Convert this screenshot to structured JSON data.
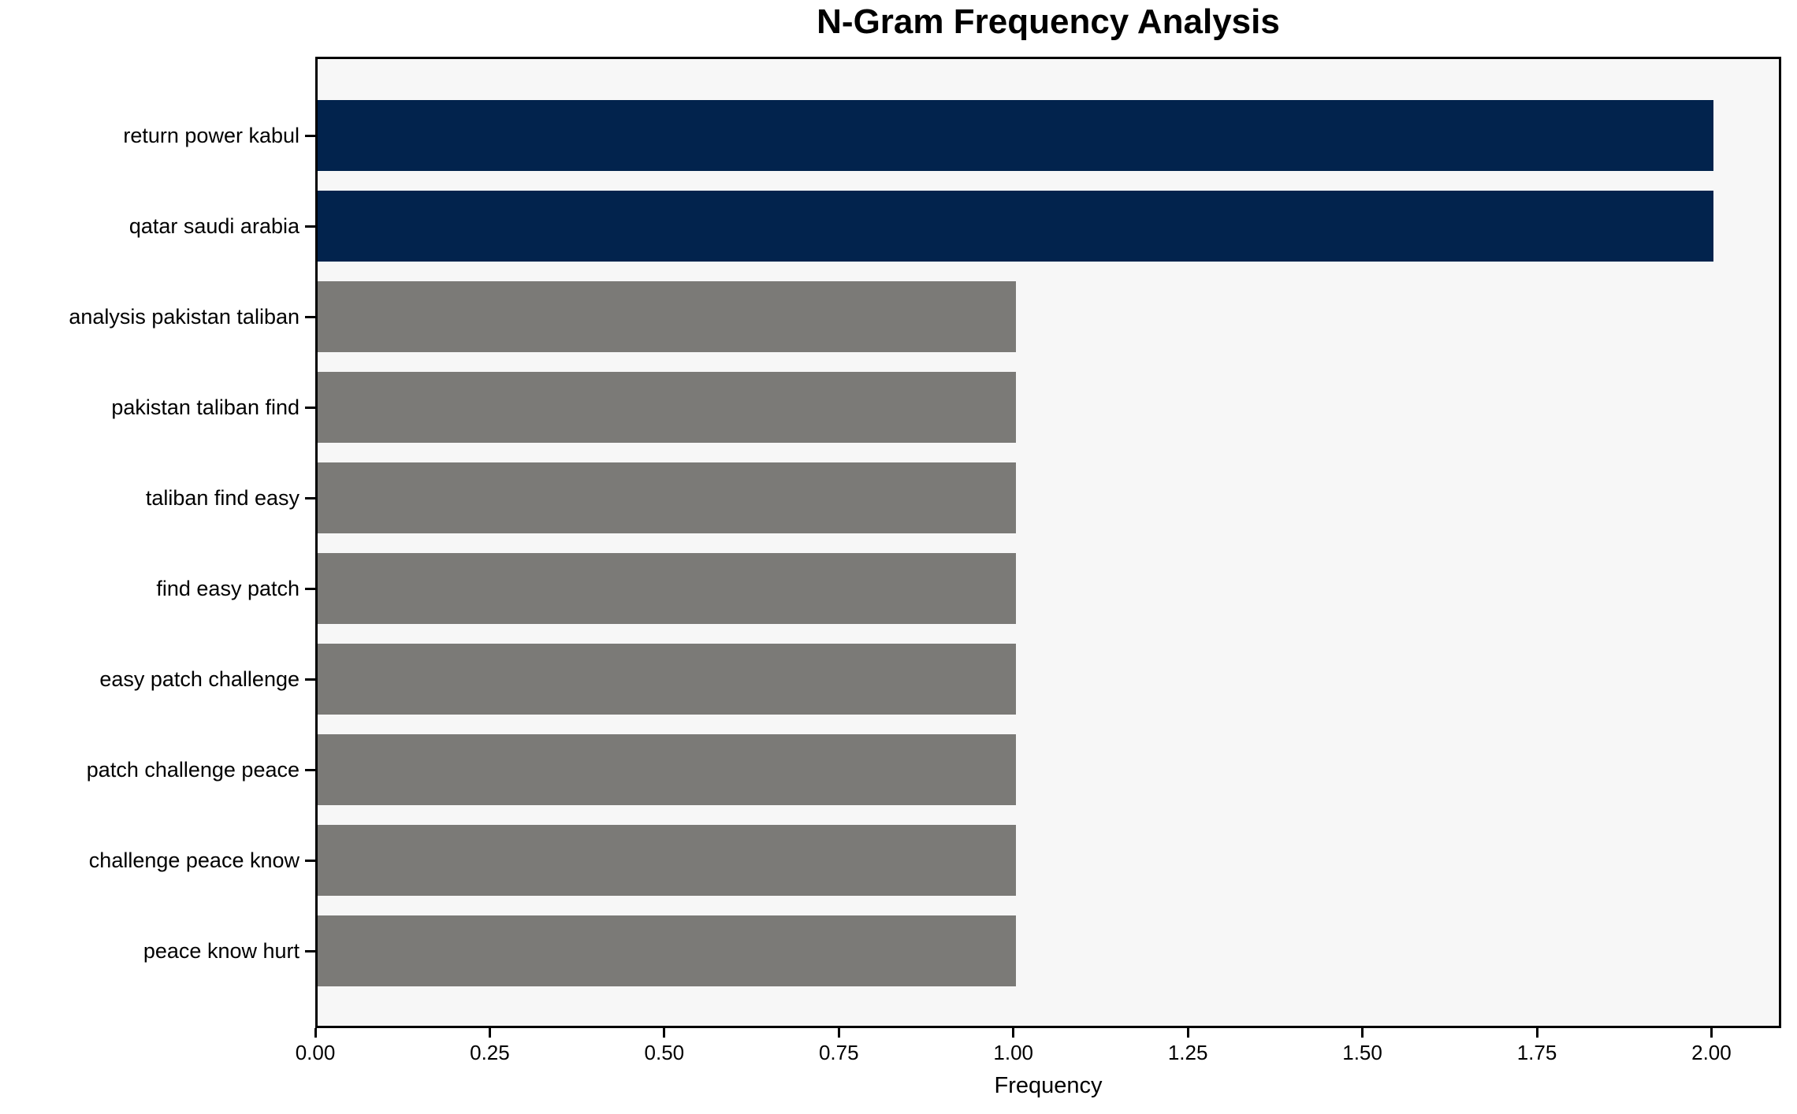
{
  "figure": {
    "background": "#ffffff",
    "plot_background": "#f7f7f7",
    "spine_color": "#000000",
    "text_color": "#000000"
  },
  "chart_data": {
    "type": "bar",
    "orientation": "horizontal",
    "title": "N-Gram Frequency Analysis",
    "xlabel": "Frequency",
    "ylabel": "",
    "categories": [
      "return power kabul",
      "qatar saudi arabia",
      "analysis pakistan taliban",
      "pakistan taliban find",
      "taliban find easy",
      "find easy patch",
      "easy patch challenge",
      "patch challenge peace",
      "challenge peace know",
      "peace know hurt"
    ],
    "values": [
      2,
      2,
      1,
      1,
      1,
      1,
      1,
      1,
      1,
      1
    ],
    "bar_colors": [
      "#02234d",
      "#02234d",
      "#7b7a77",
      "#7b7a77",
      "#7b7a77",
      "#7b7a77",
      "#7b7a77",
      "#7b7a77",
      "#7b7a77",
      "#7b7a77"
    ],
    "highlight_color": "#02234d",
    "default_color": "#7b7a77",
    "xlim": [
      0,
      2.1
    ],
    "xticks": [
      0,
      0.25,
      0.5,
      0.75,
      1,
      1.25,
      1.5,
      1.75,
      2
    ],
    "xtick_labels": [
      "0.00",
      "0.25",
      "0.50",
      "0.75",
      "1.00",
      "1.25",
      "1.50",
      "1.75",
      "2.00"
    ],
    "grid": false,
    "legend_position": "none"
  }
}
